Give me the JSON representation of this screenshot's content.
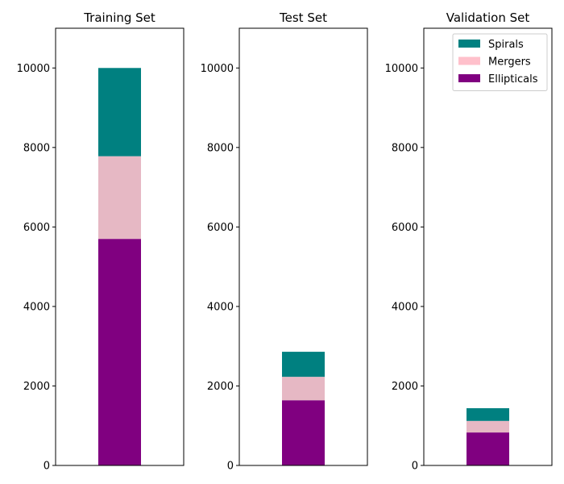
{
  "chart_data": [
    {
      "type": "bar",
      "stacked": true,
      "title": "Training Set",
      "ylim": [
        0,
        11000
      ],
      "yticks": [
        0,
        2000,
        4000,
        6000,
        8000,
        10000
      ],
      "legend": "none",
      "series": [
        {
          "name": "Ellipticals",
          "value": 5700,
          "color": "#800080"
        },
        {
          "name": "Mergers",
          "value": 2080,
          "color": "#e6b8c4"
        },
        {
          "name": "Spirals",
          "value": 2220,
          "color": "#008080"
        }
      ]
    },
    {
      "type": "bar",
      "stacked": true,
      "title": "Test Set",
      "ylim": [
        0,
        11000
      ],
      "yticks": [
        0,
        2000,
        4000,
        6000,
        8000,
        10000
      ],
      "legend": "none",
      "series": [
        {
          "name": "Ellipticals",
          "value": 1640,
          "color": "#800080"
        },
        {
          "name": "Mergers",
          "value": 590,
          "color": "#e6b8c4"
        },
        {
          "name": "Spirals",
          "value": 630,
          "color": "#008080"
        }
      ]
    },
    {
      "type": "bar",
      "stacked": true,
      "title": "Validation Set",
      "ylim": [
        0,
        11000
      ],
      "yticks": [
        0,
        2000,
        4000,
        6000,
        8000,
        10000
      ],
      "legend": "top-right",
      "series": [
        {
          "name": "Ellipticals",
          "value": 830,
          "color": "#800080"
        },
        {
          "name": "Mergers",
          "value": 290,
          "color": "#e6b8c4"
        },
        {
          "name": "Spirals",
          "value": 320,
          "color": "#008080"
        }
      ]
    }
  ],
  "legend": {
    "items": [
      {
        "label": "Spirals",
        "color": "#008080"
      },
      {
        "label": "Mergers",
        "color": "#ffc0cb"
      },
      {
        "label": "Ellipticals",
        "color": "#800080"
      }
    ]
  }
}
